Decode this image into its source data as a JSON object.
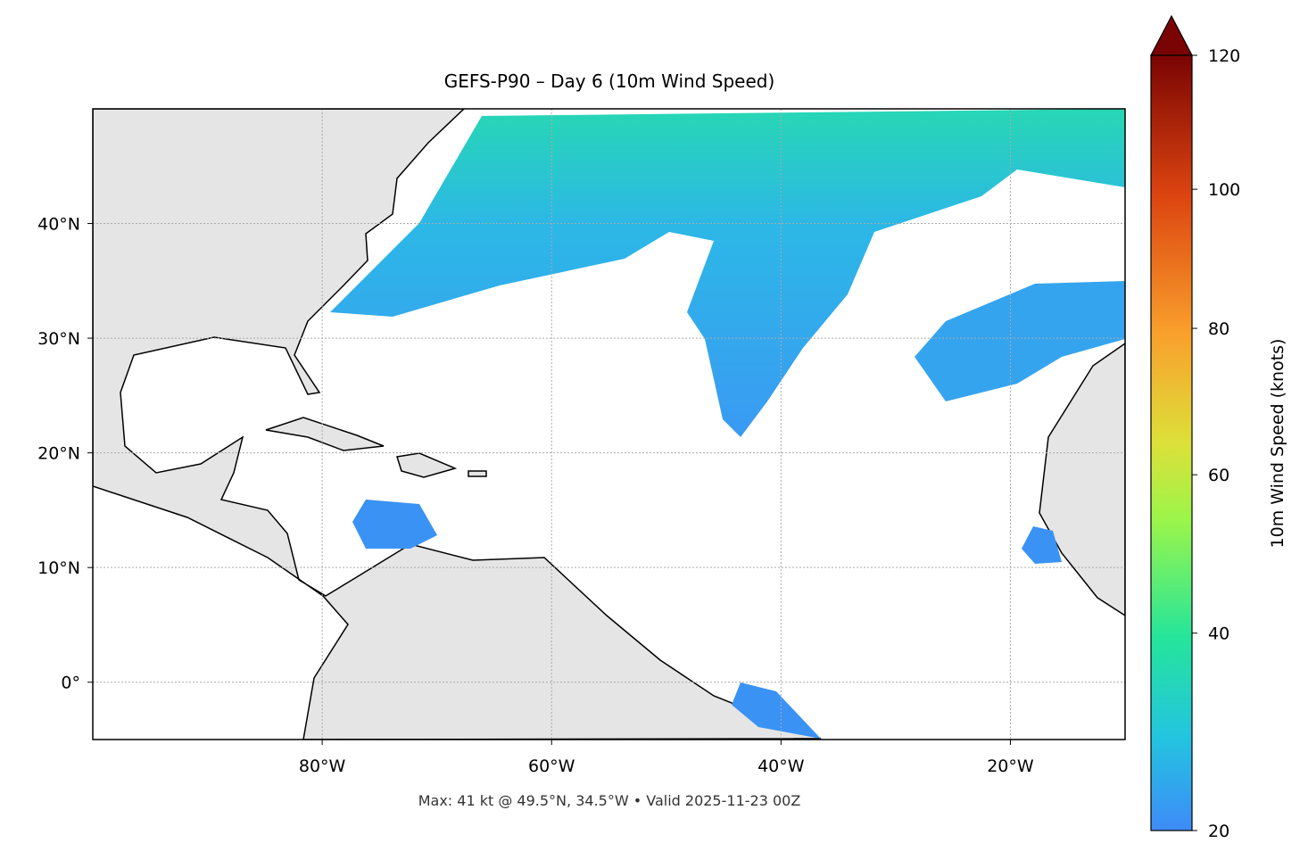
{
  "title": "GEFS-P90 – Day 6 (10m Wind Speed)",
  "map": {
    "xlim": [
      -100,
      -10
    ],
    "ylim": [
      -5,
      50
    ],
    "xticks": [
      {
        "value": -80,
        "label": "80°W"
      },
      {
        "value": -60,
        "label": "60°W"
      },
      {
        "value": -40,
        "label": "40°W"
      },
      {
        "value": -20,
        "label": "20°W"
      }
    ],
    "yticks": [
      {
        "value": 40,
        "label": "40°N"
      },
      {
        "value": 30,
        "label": "30°N"
      },
      {
        "value": 20,
        "label": "20°N"
      },
      {
        "value": 10,
        "label": "10°N"
      },
      {
        "value": 0,
        "label": "0°"
      }
    ],
    "grid": true
  },
  "colorbar": {
    "label": "10m Wind Speed (knots)",
    "lim": [
      20,
      120
    ],
    "gamma": 0.85,
    "ticks": [
      20,
      40,
      60,
      80,
      100,
      120
    ]
  },
  "footer": "Max: 41 kt @ 49.5°N, 34.5°W • Valid 2025-11-23 00Z"
}
